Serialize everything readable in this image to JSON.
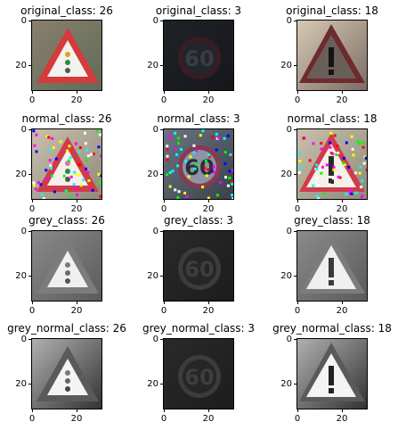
{
  "tick_labels": {
    "x0": "0",
    "x20": "20",
    "y0": "0",
    "y20": "20"
  },
  "rows": [
    {
      "row_key": "original",
      "panels": [
        {
          "title": "original_class: 26",
          "sign": "warning-traffic-light",
          "style": "color-clear"
        },
        {
          "title": "original_class: 3",
          "sign": "speed-limit-60",
          "style": "color-dark"
        },
        {
          "title": "original_class: 18",
          "sign": "warning-exclamation",
          "style": "color-dark-sign"
        }
      ]
    },
    {
      "row_key": "normal",
      "panels": [
        {
          "title": "normal_class: 26",
          "sign": "warning-traffic-light",
          "style": "color-noisy"
        },
        {
          "title": "normal_class: 3",
          "sign": "speed-limit-60",
          "style": "color-normalized"
        },
        {
          "title": "normal_class: 18",
          "sign": "warning-exclamation",
          "style": "color-noisy"
        }
      ]
    },
    {
      "row_key": "grey",
      "panels": [
        {
          "title": "grey_class: 26",
          "sign": "warning-traffic-light",
          "style": "grey"
        },
        {
          "title": "grey_class: 3",
          "sign": "speed-limit-60",
          "style": "grey-dark"
        },
        {
          "title": "grey_class: 18",
          "sign": "warning-exclamation",
          "style": "grey"
        }
      ]
    },
    {
      "row_key": "grey_normal",
      "panels": [
        {
          "title": "grey_normal_class: 26",
          "sign": "warning-traffic-light",
          "style": "grey-contrast"
        },
        {
          "title": "grey_normal_class: 3",
          "sign": "speed-limit-60",
          "style": "grey-dark"
        },
        {
          "title": "grey_normal_class: 18",
          "sign": "warning-exclamation",
          "style": "grey-contrast"
        }
      ]
    }
  ]
}
